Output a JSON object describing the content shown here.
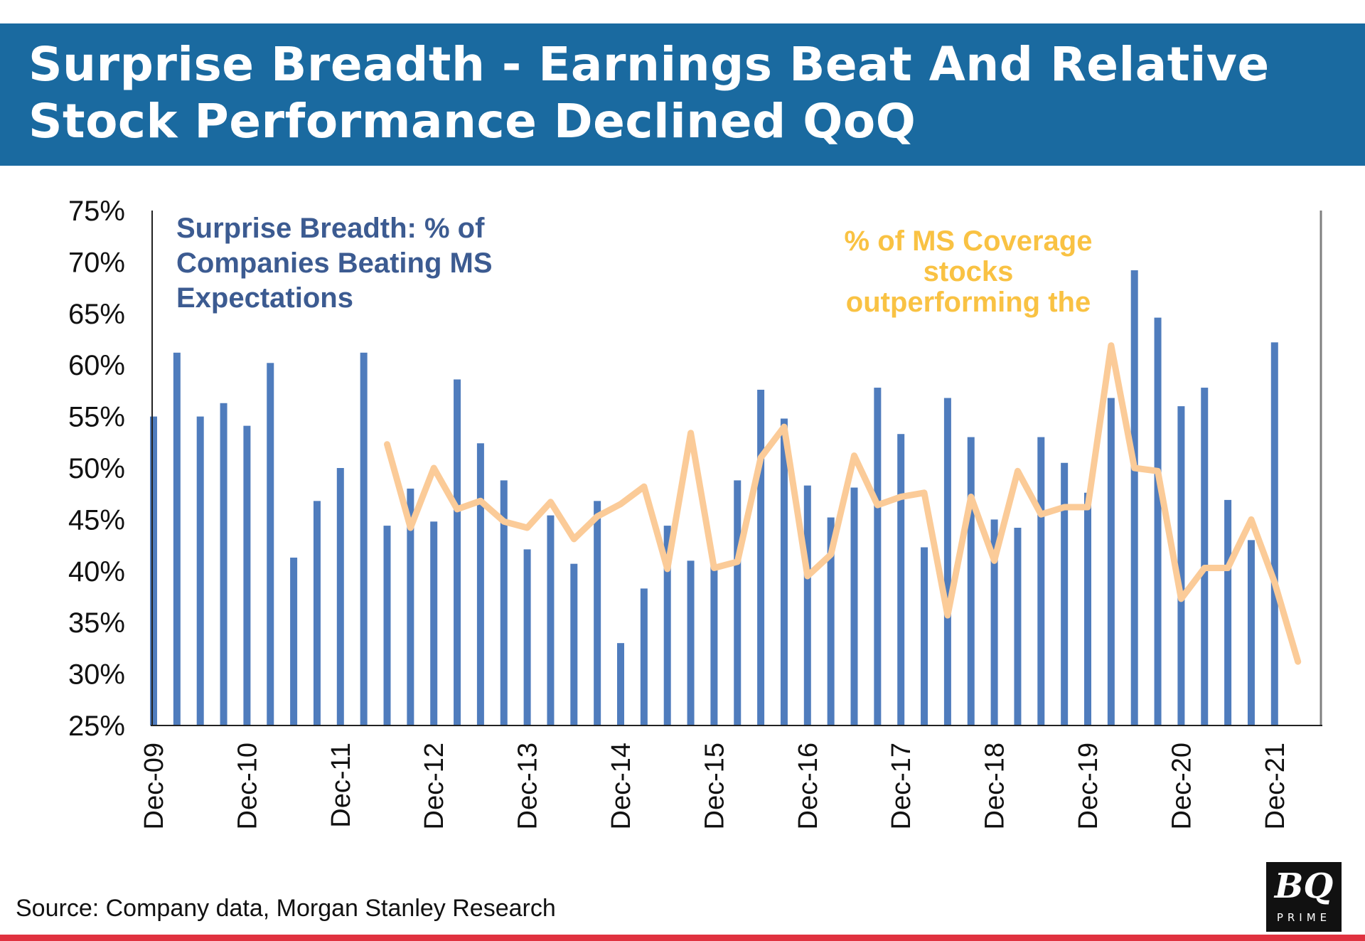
{
  "header": {
    "title_line1": "Surprise Breadth - Earnings Beat And Relative",
    "title_line2": "Stock Performance Declined QoQ"
  },
  "colors": {
    "header_bg": "#1a6aa0",
    "bar": "#4f7cbd",
    "line": "#fbcb98",
    "blue_text": "#3c5b91",
    "yellow_text": "#f9c243",
    "accent_bar": "#e0313f"
  },
  "chart_data": {
    "type": "bar",
    "title": "Surprise Breadth - Earnings Beat And Relative Stock Performance Declined QoQ",
    "ylim": [
      25,
      75
    ],
    "yticks": [
      25,
      30,
      35,
      40,
      45,
      50,
      55,
      60,
      65,
      70,
      75
    ],
    "y_tick_labels": [
      "25%",
      "30%",
      "35%",
      "40%",
      "45%",
      "50%",
      "55%",
      "60%",
      "65%",
      "70%",
      "75%"
    ],
    "x_tick_labels": [
      "Dec-09",
      "Dec-10",
      "Dec-11",
      "Dec-12",
      "Dec-13",
      "Dec-14",
      "Dec-15",
      "Dec-16",
      "Dec-17",
      "Dec-18",
      "Dec-19",
      "Dec-20",
      "Dec-21"
    ],
    "x_tick_every": 4,
    "series": [
      {
        "name": "Surprise Breadth: % of Companies Beating MS Expectations",
        "type": "bar",
        "values": [
          55,
          61.2,
          55,
          56.3,
          54.1,
          60.2,
          41.3,
          46.8,
          50,
          61.2,
          44.4,
          48,
          44.8,
          58.6,
          52.4,
          48.8,
          42.1,
          45.4,
          40.7,
          46.8,
          33,
          38.3,
          44.4,
          41,
          40.5,
          48.8,
          57.6,
          54.8,
          48.3,
          45.2,
          48.1,
          57.8,
          53.3,
          42.3,
          56.8,
          53,
          45,
          44.2,
          53,
          50.5,
          47.6,
          56.8,
          69.2,
          64.6,
          56,
          57.8,
          46.9,
          43,
          62.2
        ]
      },
      {
        "name": "% of MS Coverage stocks outperforming the",
        "type": "line",
        "start_index": 10,
        "values": [
          52.3,
          44.2,
          50,
          46,
          46.8,
          44.8,
          44.2,
          46.7,
          43.1,
          45.3,
          46.5,
          48.2,
          40.2,
          53.4,
          40.3,
          40.9,
          51,
          54,
          39.5,
          41.6,
          51.2,
          46.4,
          47.2,
          47.6,
          35.7,
          47.2,
          41,
          49.7,
          45.5,
          46.2,
          46.2,
          61.9,
          50,
          49.7,
          37.3,
          40.3,
          40.3,
          45,
          38.9,
          31.2
        ]
      }
    ],
    "annotations": {
      "blue": [
        "Surprise Breadth: % of",
        "Companies Beating MS",
        "Expectations"
      ],
      "yellow": [
        "% of MS Coverage",
        "stocks",
        "outperforming the"
      ]
    }
  },
  "footer": {
    "source": "Source: Company data, Morgan Stanley Research",
    "logo_main": "BQ",
    "logo_sub": "PRIME"
  }
}
